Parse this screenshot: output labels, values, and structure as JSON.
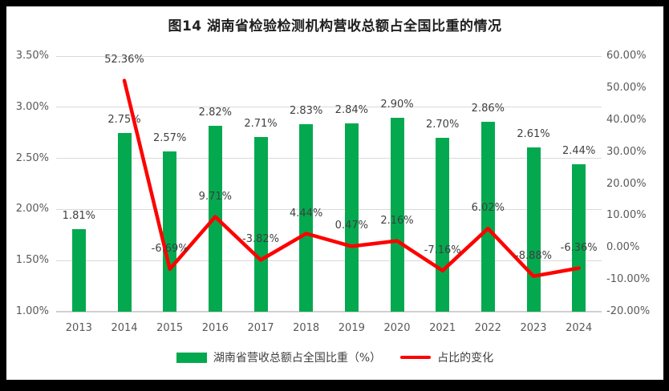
{
  "title": "图14 湖南省检验检测机构营收总额占全国比重的情况",
  "colors": {
    "bar": "#04a94f",
    "line": "#fe0000",
    "axis_text": "#595959",
    "data_label_text": "#404040",
    "gridline": "#d9d9d9",
    "title_text": "#1f1f1f",
    "frame": "#000000",
    "background": "#ffffff"
  },
  "chart_data": {
    "type": "combo-bar-line",
    "categories": [
      "2013",
      "2014",
      "2015",
      "2016",
      "2017",
      "2018",
      "2019",
      "2020",
      "2021",
      "2022",
      "2023",
      "2024"
    ],
    "series": [
      {
        "name": "湖南省营收总额占全国比重（%）",
        "type": "bar",
        "axis": "left",
        "values": [
          1.81,
          2.75,
          2.57,
          2.82,
          2.71,
          2.83,
          2.84,
          2.9,
          2.7,
          2.86,
          2.61,
          2.44
        ],
        "labels": [
          "1.81%",
          "2.75%",
          "2.57%",
          "2.82%",
          "2.71%",
          "2.83%",
          "2.84%",
          "2.90%",
          "2.70%",
          "2.86%",
          "2.61%",
          "2.44%"
        ]
      },
      {
        "name": "占比的变化",
        "type": "line",
        "axis": "right",
        "values": [
          null,
          52.36,
          -6.69,
          9.71,
          -3.82,
          4.44,
          0.47,
          2.16,
          -7.16,
          6.02,
          -8.88,
          -6.36
        ],
        "labels": [
          "",
          "52.36%",
          "-6.69%",
          "9.71%",
          "-3.82%",
          "4.44%",
          "0.47%",
          "2.16%",
          "-7.16%",
          "6.02%",
          "-8.88%",
          "-6.36%"
        ]
      }
    ],
    "left_axis": {
      "min": 1.0,
      "max": 3.5,
      "tick_labels": [
        "3.50%",
        "3.00%",
        "2.50%",
        "2.00%",
        "1.50%",
        "1.00%"
      ]
    },
    "right_axis": {
      "min": -20,
      "max": 60,
      "tick_labels": [
        "60.00%",
        "50.00%",
        "40.00%",
        "30.00%",
        "20.00%",
        "10.00%",
        "0.00%",
        "-10.00%",
        "-20.00%"
      ]
    },
    "grid": true,
    "legend_position": "bottom"
  }
}
